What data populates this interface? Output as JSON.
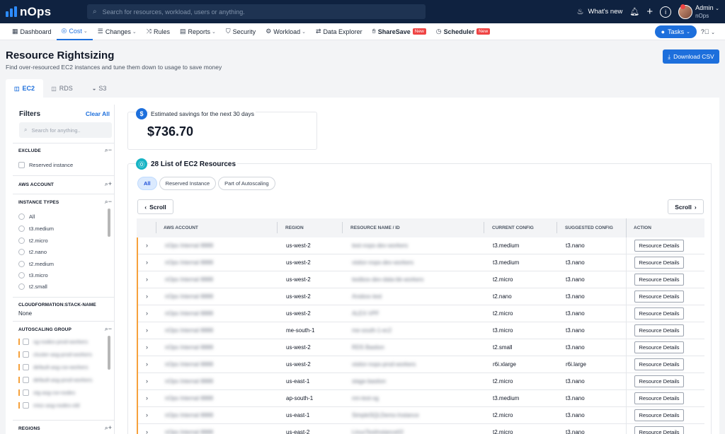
{
  "topbar": {
    "brand": "nOps",
    "search_placeholder": "Search for resources, workload, users or anything.",
    "whats_new": "What's new",
    "user_name": "Admin",
    "user_org": "nOps"
  },
  "nav": {
    "items": [
      {
        "label": "Dashboard",
        "icon": "grid-icon"
      },
      {
        "label": "Cost",
        "icon": "dollar-circle-icon",
        "dropdown": true,
        "active": true
      },
      {
        "label": "Changes",
        "icon": "list-icon",
        "dropdown": true
      },
      {
        "label": "Rules",
        "icon": "shuffle-icon"
      },
      {
        "label": "Reports",
        "icon": "report-icon",
        "dropdown": true
      },
      {
        "label": "Security",
        "icon": "shield-icon"
      },
      {
        "label": "Workload",
        "icon": "gear-icon",
        "dropdown": true
      },
      {
        "label": "Data Explorer",
        "icon": "swap-icon"
      },
      {
        "label": "ShareSave",
        "icon": "hand-coins-icon",
        "badge": "New"
      },
      {
        "label": "Scheduler",
        "icon": "clock-icon",
        "badge": "New"
      }
    ],
    "tasks_label": "Tasks"
  },
  "page": {
    "title": "Resource Rightsizing",
    "subtitle": "Find over-resourced EC2 instances and tune them down to usage to save money",
    "csv_button": "Download CSV",
    "tabs": [
      "EC2",
      "RDS",
      "S3"
    ]
  },
  "filters": {
    "title": "Filters",
    "clear_all": "Clear All",
    "search_placeholder": "Search for anything..",
    "exclude": {
      "title": "EXCLUDE",
      "option": "Reserved instance"
    },
    "aws_account": {
      "title": "AWS ACCOUNT"
    },
    "instance_types": {
      "title": "INSTANCE TYPES",
      "options": [
        "All",
        "t3.medium",
        "t2.micro",
        "t2.nano",
        "t2.medium",
        "t3.micro",
        "t2.small"
      ]
    },
    "cloudformation": {
      "title": "CLOUDFORMATION:STACK-NAME",
      "value": "None"
    },
    "autoscaling": {
      "title": "AUTOSCALING GROUP",
      "options": [
        "sg-nodes-prod-workers",
        "cluster-asg-prod-workers",
        "default-asg-cw-workers",
        "default-asg-prod-workers",
        "stg-asg-cw-nodes",
        "misc-asg-nodes-old"
      ]
    },
    "regions": {
      "title": "REGIONS"
    }
  },
  "savings": {
    "label": "Estimated savings for the next 30 days",
    "value": "$736.70"
  },
  "list": {
    "title": "28 List of EC2 Resources",
    "chips": [
      "All",
      "Reserved Instance",
      "Part of Autoscaling"
    ],
    "scroll_left": "Scroll",
    "scroll_right": "Scroll",
    "columns": [
      "AWS ACCOUNT",
      "REGION",
      "RESOURCE NAME / ID",
      "CURRENT CONFIG",
      "SUGGESTED CONFIG",
      "ACTION"
    ],
    "action_label": "Resource Details",
    "rows": [
      {
        "account": "nOps Internal 8888",
        "region": "us-west-2",
        "resource": "test-nops-dev-workers",
        "current": "t3.medium",
        "suggested": "t3.nano"
      },
      {
        "account": "nOps Internal 8888",
        "region": "us-west-2",
        "resource": "visitor-nops-dev-workers",
        "current": "t3.medium",
        "suggested": "t3.nano"
      },
      {
        "account": "nOps Internal 8888",
        "region": "us-west-2",
        "resource": "testbox-dev-data-bk-workers",
        "current": "t2.micro",
        "suggested": "t3.nano"
      },
      {
        "account": "nOps Internal 8888",
        "region": "us-west-2",
        "resource": "Ansbox-test",
        "current": "t2.nano",
        "suggested": "t3.nano"
      },
      {
        "account": "nOps Internal 8888",
        "region": "us-west-2",
        "resource": "ALEX-VPF",
        "current": "t2.micro",
        "suggested": "t3.nano"
      },
      {
        "account": "nOps Internal 8888",
        "region": "me-south-1",
        "resource": "me-south-1-ec2",
        "current": "t3.micro",
        "suggested": "t3.nano"
      },
      {
        "account": "nOps Internal 8888",
        "region": "us-west-2",
        "resource": "RDS Bastion",
        "current": "t2.small",
        "suggested": "t3.nano"
      },
      {
        "account": "nOps Internal 8888",
        "region": "us-west-2",
        "resource": "visitor-nops-prod-workers",
        "current": "r6i.xlarge",
        "suggested": "r6i.large"
      },
      {
        "account": "nOps Internal 8888",
        "region": "us-east-1",
        "resource": "stage-bastion",
        "current": "t2.micro",
        "suggested": "t3.nano"
      },
      {
        "account": "nOps Internal 8888",
        "region": "ap-south-1",
        "resource": "nm-test-sg",
        "current": "t3.medium",
        "suggested": "t3.nano"
      },
      {
        "account": "nOps Internal 8888",
        "region": "us-east-1",
        "resource": "SimpleSQLDemo-Instance",
        "current": "t2.micro",
        "suggested": "t3.nano"
      },
      {
        "account": "nOps Internal 8888",
        "region": "us-east-2",
        "resource": "LinuxTestInstance02",
        "current": "t2.micro",
        "suggested": "t3.nano"
      }
    ]
  },
  "colors": {
    "topbar": "#0f2240",
    "accent": "#1d6fdc",
    "new_badge": "#ef4444",
    "row_accent": "#f6a13c"
  }
}
